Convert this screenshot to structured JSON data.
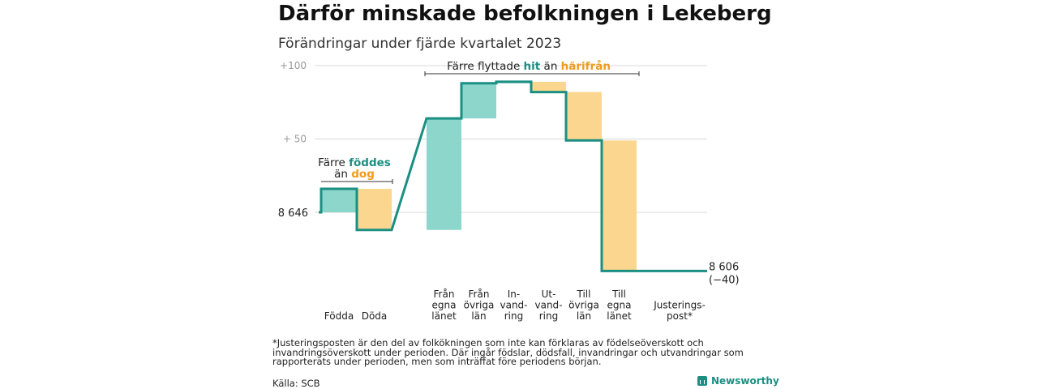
{
  "title": "Därför minskade befolkningen i Lekeberg",
  "subtitle": "Förändringar under fjärde kvartalet 2023",
  "chart_data": {
    "type": "waterfall",
    "title": "Därför minskade befolkningen i Lekeberg",
    "subtitle": "Förändringar under fjärde kvartalet 2023",
    "start_value": 8646,
    "start_label": "8 646",
    "end_label": "8 606",
    "end_change_label": "(−40)",
    "y_ticks": [
      {
        "value": 100,
        "label": "+100"
      },
      {
        "value": 50,
        "label": "+  50"
      }
    ],
    "ylim": [
      -46,
      100
    ],
    "steps": [
      {
        "label": [
          "Födda"
        ],
        "value": 16,
        "kind": "increase"
      },
      {
        "label": [
          "Döda"
        ],
        "value": -28,
        "kind": "decrease"
      },
      {
        "label": [
          "Från",
          "egna",
          "länet"
        ],
        "value": 76,
        "kind": "increase"
      },
      {
        "label": [
          "Från",
          "övriga",
          "län"
        ],
        "value": 24,
        "kind": "increase"
      },
      {
        "label": [
          "In-",
          "vand-",
          "ring"
        ],
        "value": 1,
        "kind": "increase"
      },
      {
        "label": [
          "Ut-",
          "vand-",
          "ring"
        ],
        "value": -7,
        "kind": "decrease"
      },
      {
        "label": [
          "Till",
          "övriga",
          "län"
        ],
        "value": -33,
        "kind": "decrease"
      },
      {
        "label": [
          "Till",
          "egna",
          "länet"
        ],
        "value": -89,
        "kind": "decrease"
      },
      {
        "label": [
          "Justerings-",
          "post*"
        ],
        "value": 0,
        "kind": "adjustment"
      }
    ],
    "annotations": [
      {
        "lines": [
          [
            {
              "text": "Färre ",
              "role": "plain"
            },
            {
              "text": "föddes",
              "role": "increase"
            }
          ],
          [
            {
              "text": "än ",
              "role": "plain"
            },
            {
              "text": "dog",
              "role": "decrease"
            }
          ]
        ]
      },
      {
        "lines": [
          [
            {
              "text": "Färre flyttade ",
              "role": "plain"
            },
            {
              "text": "hit",
              "role": "increase"
            },
            {
              "text": "  än ",
              "role": "plain"
            },
            {
              "text": "härifrån",
              "role": "decrease"
            }
          ]
        ]
      }
    ],
    "colors": {
      "increase": "#8dd6cc",
      "decrease": "#fbd68e",
      "line": "#1a8f82",
      "increase_text": "#1a8f82",
      "decrease_text": "#ef9c1c",
      "grid": "#d9d9d9",
      "tick_text": "#999999"
    }
  },
  "footnote": "*Justeringsposten är den del av folkökningen som inte kan förklaras av födelseöverskott och invandringsöverskott under perioden. Där ingår födslar, dödsfall, invandringar och utvandringar som rapporterats under perioden, men som inträffat före periodens början.",
  "source": "Källa: SCB",
  "brand": "Newsworthy"
}
